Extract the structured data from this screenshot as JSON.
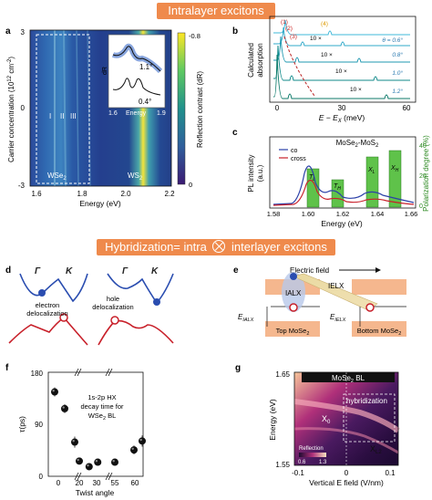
{
  "banners": {
    "top": "Intralayer excitons",
    "middle_pre": "Hybridization= intra",
    "middle_post": "interlayer excitons"
  },
  "panel_letters": [
    "a",
    "b",
    "c",
    "d",
    "e",
    "f",
    "g"
  ],
  "panel_a": {
    "ylabel": "Carrier concentration (10",
    "ylabel_exp": "12",
    "ylabel_unit": " cm",
    "ylabel_exp2": "-2",
    "ylabel_close": ")",
    "xlabel": "Energy (eV)",
    "x_ticks": [
      "1.6",
      "1.8",
      "2.0",
      "2.2"
    ],
    "y_ticks": [
      "3",
      "0",
      "-3"
    ],
    "region_left": "WSe",
    "region_right": "WS",
    "sub2": "2",
    "marker_labels": [
      "I",
      "II",
      "III"
    ],
    "colorbar_label": "Reflection contrast (dR)",
    "colorbar_ticks": [
      "-0.8",
      "0"
    ],
    "inset": {
      "ylabel": "dR",
      "xlabel": "Energy",
      "x_ticks": [
        "1.6",
        "1.9"
      ],
      "angle_top": "1.1°",
      "angle_bottom": "0.4°"
    }
  },
  "panel_b": {
    "ylabel_line1": "Calculated",
    "ylabel_line2": "absorption",
    "xlabel": "E − E",
    "xlabel_sub": "X",
    "xlabel_unit": " (meV)",
    "x_ticks": [
      "0",
      "30",
      "60"
    ],
    "peak_labels": [
      "(1)",
      "(2)",
      "(3)",
      "(4)"
    ],
    "theta_labels": [
      "θ = 0.6°",
      "0.8°",
      "1.0°",
      "1.2°"
    ],
    "scale_labels": [
      "10 ×",
      "10 ×",
      "10 ×",
      "10 ×"
    ]
  },
  "panel_c": {
    "title": "MoSe",
    "title_mid": "-MoS",
    "ylabel_left_line1": "PL intensity",
    "ylabel_left_line2": "(a.u.)",
    "ylabel_right": "Polarization degree (%)",
    "xlabel": "Energy (eV)",
    "x_ticks": [
      "1.58",
      "1.60",
      "1.62",
      "1.64",
      "1.66"
    ],
    "y_right_ticks": [
      "0",
      "20",
      "40"
    ],
    "legend": [
      "co",
      "cross"
    ],
    "bar_labels": [
      "T",
      "T",
      "X",
      "X"
    ],
    "bar_subs": [
      "L",
      "H",
      "L",
      "H"
    ]
  },
  "panel_d": {
    "greek": [
      "Γ",
      "K",
      "Γ",
      "K"
    ],
    "label_electron_1": "electron",
    "label_electron_2": "delocalization",
    "label_hole_1": "hole",
    "label_hole_2": "delocalization"
  },
  "panel_e": {
    "field_label": "Electric field",
    "ialx": "IALX",
    "ielx": "IELX",
    "e_ialx": "E",
    "e_ialx_sub": "IALX",
    "e_ielx": "E",
    "e_ielx_sub": "IELX",
    "top_layer": "Top MoSe",
    "bottom_layer": "Bottom MoSe"
  },
  "panel_f": {
    "ylabel": "τ(ps)",
    "xlabel": "Twist angle",
    "y_ticks": [
      "180",
      "90",
      "0"
    ],
    "x_ticks": [
      "0",
      "20",
      "30",
      "55",
      "60"
    ],
    "legend_line1": "1s-2p HX",
    "legend_line2": "decay time for",
    "legend_line3": "WSe",
    "legend_line3_post": " BL",
    "chart_data": {
      "type": "scatter",
      "xlabel": "Twist angle",
      "ylabel": "τ(ps)",
      "ylim": [
        0,
        180
      ],
      "points": [
        {
          "x": 0,
          "y": 148,
          "err": 8
        },
        {
          "x": 5,
          "y": 118,
          "err": 8
        },
        {
          "x": 10,
          "y": 58,
          "err": 10
        },
        {
          "x": 20,
          "y": 24,
          "err": 6
        },
        {
          "x": 28,
          "y": 14,
          "err": 5
        },
        {
          "x": 35,
          "y": 22,
          "err": 6
        },
        {
          "x": 50,
          "y": 22,
          "err": 6
        },
        {
          "x": 57,
          "y": 44,
          "err": 8
        },
        {
          "x": 60,
          "y": 60,
          "err": 10
        }
      ]
    }
  },
  "panel_g": {
    "title": "MoSe",
    "title_post": " BL",
    "ylabel": "Energy (eV)",
    "xlabel": "Vertical E field (V/nm)",
    "y_ticks": [
      "1.65",
      "1.55"
    ],
    "x_ticks": [
      "-0.1",
      "0",
      "0.1"
    ],
    "hybridization": "hybridization",
    "x0": "X",
    "x0_sub": "0",
    "xl2": "X",
    "xl2_sub": "L2",
    "cbar_label": "Reflection",
    "cbar_ticks": [
      "0.6",
      "1.3"
    ]
  },
  "colors": {
    "banner": "#ef8a4c",
    "cyan": "#19b9c9",
    "teal": "#118a8a",
    "blue": "#2a3fa8",
    "red": "#c8202a",
    "green": "#5fc24a",
    "peach": "#f5b78e"
  }
}
